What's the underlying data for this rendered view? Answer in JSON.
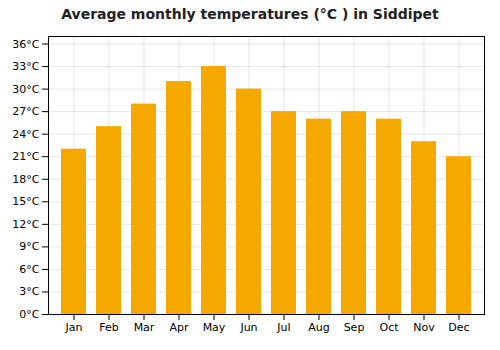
{
  "chart_data": {
    "type": "bar",
    "title": "Average monthly temperatures (°C ) in Siddipet",
    "categories": [
      "Jan",
      "Feb",
      "Mar",
      "Apr",
      "May",
      "Jun",
      "Jul",
      "Aug",
      "Sep",
      "Oct",
      "Nov",
      "Dec"
    ],
    "values": [
      22,
      25,
      28,
      31,
      33,
      30,
      27,
      26,
      27,
      26,
      23,
      21
    ],
    "color": "#F5A800",
    "ylim": [
      0,
      37
    ],
    "yticks": [
      {
        "value": 0,
        "label": "0°C"
      },
      {
        "value": 3,
        "label": "3°C"
      },
      {
        "value": 6,
        "label": "6°C"
      },
      {
        "value": 9,
        "label": "9°C"
      },
      {
        "value": 12,
        "label": "12°C"
      },
      {
        "value": 15,
        "label": "15°C"
      },
      {
        "value": 18,
        "label": "18°C"
      },
      {
        "value": 21,
        "label": "21°C"
      },
      {
        "value": 24,
        "label": "24°C"
      },
      {
        "value": 27,
        "label": "27°C"
      },
      {
        "value": 30,
        "label": "30°C"
      },
      {
        "value": 33,
        "label": "33°C"
      },
      {
        "value": 36,
        "label": "36°C"
      }
    ],
    "grid": true
  }
}
